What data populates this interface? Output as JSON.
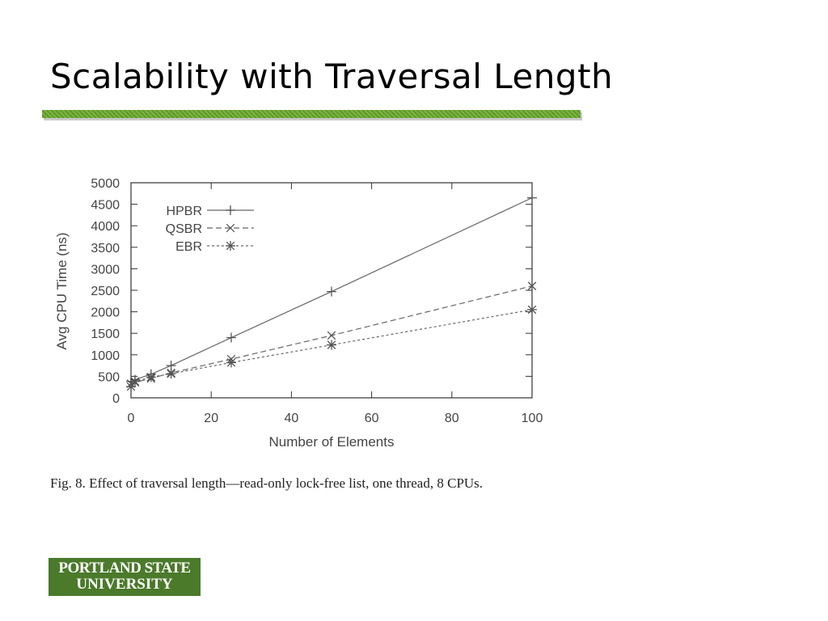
{
  "slide": {
    "title": "Scalability with Traversal Length",
    "caption": "Fig. 8. Effect of traversal length—read-only lock-free list, one thread, 8 CPUs.",
    "logo_line1": "PORTLAND STATE",
    "logo_line2": "UNIVERSITY"
  },
  "colors": {
    "accent_bar": "#7cb342",
    "logo_bg": "#4a7a2a"
  },
  "chart_data": {
    "type": "line",
    "title": "",
    "xlabel": "Number of Elements",
    "ylabel": "Avg CPU Time (ns)",
    "xlim": [
      0,
      100
    ],
    "ylim": [
      0,
      5000
    ],
    "xticks": [
      0,
      20,
      40,
      60,
      80,
      100
    ],
    "yticks": [
      0,
      500,
      1000,
      1500,
      2000,
      2500,
      3000,
      3500,
      4000,
      4500,
      5000
    ],
    "legend_position": "top-left",
    "grid": false,
    "series": [
      {
        "name": "HPBR",
        "marker": "plus",
        "dash": "solid",
        "x": [
          0,
          1,
          5,
          10,
          25,
          50,
          100
        ],
        "y": [
          380,
          420,
          550,
          750,
          1400,
          2470,
          4650
        ]
      },
      {
        "name": "QSBR",
        "marker": "x",
        "dash": "long-dash",
        "x": [
          0,
          1,
          5,
          10,
          25,
          50,
          100
        ],
        "y": [
          330,
          360,
          450,
          580,
          900,
          1450,
          2600
        ]
      },
      {
        "name": "EBR",
        "marker": "star",
        "dash": "short-dash",
        "x": [
          0,
          1,
          5,
          10,
          25,
          50,
          100
        ],
        "y": [
          260,
          380,
          480,
          560,
          820,
          1230,
          2050
        ]
      }
    ]
  }
}
